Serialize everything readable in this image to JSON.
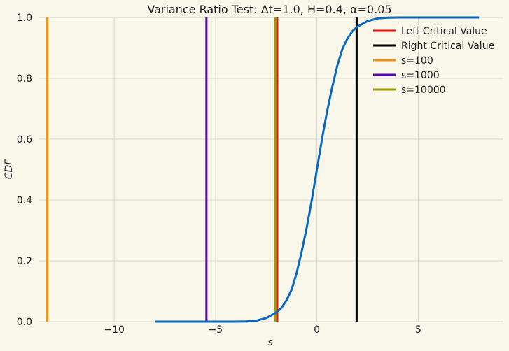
{
  "chart_data": {
    "type": "line",
    "title": "Variance Ratio Test: Δt=1.0, H=0.4, α=0.05",
    "xlabel": "s",
    "ylabel": "CDF",
    "xlim": [
      -13.7,
      9.2
    ],
    "ylim": [
      0.0,
      1.0
    ],
    "xticks": [
      -10,
      -5,
      0,
      5
    ],
    "xtick_labels": [
      "−10",
      "−5",
      "0",
      "5"
    ],
    "yticks": [
      0.0,
      0.2,
      0.4,
      0.6,
      0.8,
      1.0
    ],
    "ytick_labels": [
      "0.0",
      "0.2",
      "0.4",
      "0.6",
      "0.8",
      "1.0"
    ],
    "grid": true,
    "legend_position": "top-right",
    "curve": {
      "color": "#0868c0",
      "x": [
        -8.0,
        -7.0,
        -6.0,
        -5.0,
        -4.0,
        -3.5,
        -3.0,
        -2.5,
        -2.0,
        -1.75,
        -1.5,
        -1.25,
        -1.0,
        -0.75,
        -0.5,
        -0.25,
        0.0,
        0.25,
        0.5,
        0.75,
        1.0,
        1.25,
        1.5,
        1.75,
        2.0,
        2.5,
        3.0,
        3.5,
        4.0,
        5.0,
        6.0,
        7.0,
        8.0
      ],
      "y": [
        0.0,
        0.0,
        0.0,
        0.0,
        0.0,
        0.0005,
        0.003,
        0.012,
        0.03,
        0.045,
        0.07,
        0.105,
        0.16,
        0.23,
        0.31,
        0.4,
        0.5,
        0.6,
        0.69,
        0.77,
        0.84,
        0.895,
        0.93,
        0.955,
        0.97,
        0.988,
        0.997,
        0.9995,
        1.0,
        1.0,
        1.0,
        1.0,
        1.0
      ]
    },
    "series": [
      {
        "name": "Left Critical Value",
        "x": -1.96,
        "color": "#e3120b"
      },
      {
        "name": "Right Critical Value",
        "x": 1.96,
        "color": "#000000"
      },
      {
        "name": "s=100",
        "x": -13.3,
        "color": "#f0900e"
      },
      {
        "name": "s=1000",
        "x": -5.45,
        "color": "#5b00b3"
      },
      {
        "name": "s=10000",
        "x": -2.05,
        "color": "#a39a00"
      }
    ]
  }
}
